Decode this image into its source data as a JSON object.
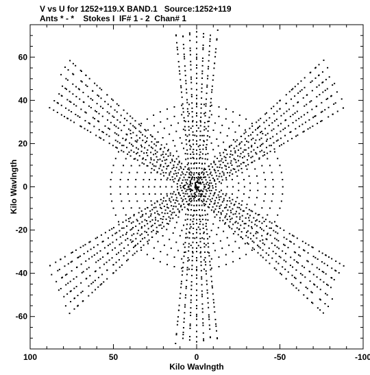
{
  "title_line1": "V vs U for 1252+119.X BAND.1   Source:1252+119",
  "title_line2": "Ants * - *    Stokes I  IF# 1 - 2  Chan# 1",
  "chart_data": {
    "type": "scatter",
    "title": "V vs U for 1252+119.X BAND.1   Source:1252+119",
    "subtitle": "Ants * - *    Stokes I  IF# 1 - 2  Chan# 1",
    "xlabel": "Kilo Wavlngth",
    "ylabel": "Kilo Wavlngth",
    "xlim": [
      100,
      -100
    ],
    "ylim": [
      -75,
      75
    ],
    "x_ticks": [
      100,
      50,
      0,
      -50,
      -100
    ],
    "x_tick_labels": [
      "100",
      "50",
      "0",
      "-50",
      "-100"
    ],
    "y_ticks": [
      60,
      40,
      20,
      0,
      -20,
      -40,
      -60
    ],
    "y_tick_labels": [
      "60",
      "40",
      "20",
      "0",
      "-20",
      "-40",
      "-60"
    ],
    "grid": false,
    "marker_color": "#000000",
    "description_of_points": "u-v coverage: six-armed star of tracks along position angles 30, 90, 150 degrees plus concentric elliptical arcs near the center",
    "arms": [
      {
        "name": "",
        "angle_deg": 90,
        "length": 72
      },
      {
        "name": "",
        "angle_deg": 30,
        "length": 96
      },
      {
        "name": "",
        "angle_deg": 150,
        "length": 96
      }
    ],
    "ring_radii": [
      4,
      7,
      10,
      13,
      16,
      19,
      22,
      25,
      28,
      32,
      36,
      40,
      45
    ]
  }
}
